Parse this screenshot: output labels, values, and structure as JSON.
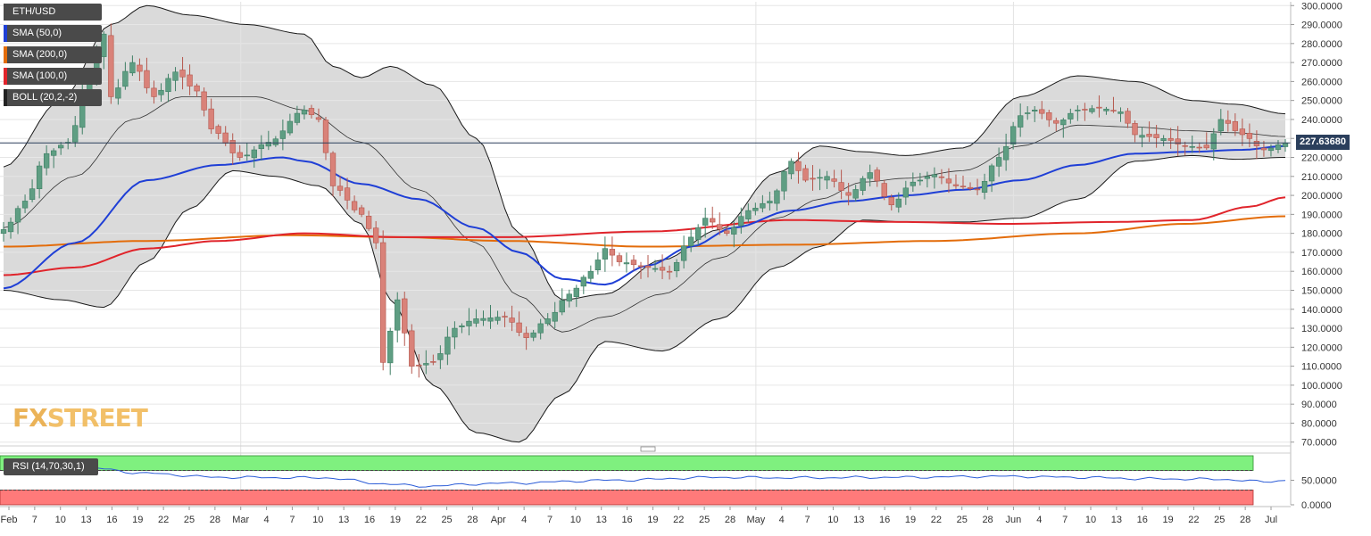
{
  "legend": [
    {
      "label": "ETH/USD",
      "color": "#4a4a4a"
    },
    {
      "label": "SMA (50,0)",
      "color": "#1f3fd6"
    },
    {
      "label": "SMA (200,0)",
      "color": "#e36c0a"
    },
    {
      "label": "SMA (100,0)",
      "color": "#e0242b"
    },
    {
      "label": "BOLL (20,2,-2)",
      "color": "#222222"
    }
  ],
  "rsi": {
    "label": "RSI (14,70,30,1)",
    "overbought_color": "#7ff07f",
    "oversold_color": "#ff7a7a"
  },
  "logo": {
    "fx": "FX",
    "street": "STREET"
  },
  "current_price": "227.63680",
  "chart_data": [
    {
      "type": "candlestick",
      "title": "ETH/USD",
      "ylim": [
        68,
        302
      ],
      "y_ticks": [
        "300.0000",
        "290.0000",
        "280.0000",
        "270.0000",
        "260.0000",
        "250.0000",
        "240.0000",
        "230.0000",
        "220.0000",
        "210.0000",
        "200.0000",
        "190.0000",
        "180.0000",
        "170.0000",
        "160.0000",
        "150.0000",
        "140.0000",
        "130.0000",
        "120.0000",
        "110.0000",
        "100.0000",
        "90.0000",
        "80.0000",
        "70.0000"
      ],
      "x_ticks": [
        "Feb",
        "7",
        "10",
        "13",
        "16",
        "19",
        "22",
        "25",
        "28",
        "Mar",
        "4",
        "7",
        "10",
        "13",
        "16",
        "19",
        "22",
        "25",
        "28",
        "Apr",
        "4",
        "7",
        "10",
        "13",
        "16",
        "19",
        "22",
        "25",
        "28",
        "May",
        "4",
        "7",
        "10",
        "13",
        "16",
        "19",
        "22",
        "25",
        "28",
        "Jun",
        "4",
        "7",
        "10",
        "13",
        "16",
        "19",
        "22",
        "25",
        "28",
        "Jul"
      ],
      "close_anchors": [
        [
          0,
          182
        ],
        [
          3,
          197
        ],
        [
          6,
          222
        ],
        [
          9,
          228
        ],
        [
          12,
          262
        ],
        [
          14,
          285
        ],
        [
          15,
          252
        ],
        [
          18,
          270
        ],
        [
          21,
          252
        ],
        [
          24,
          265
        ],
        [
          27,
          255
        ],
        [
          29,
          235
        ],
        [
          33,
          220
        ],
        [
          37,
          228
        ],
        [
          42,
          245
        ],
        [
          44,
          240
        ],
        [
          46,
          205
        ],
        [
          50,
          190
        ],
        [
          52,
          175
        ],
        [
          53,
          112
        ],
        [
          55,
          145
        ],
        [
          57,
          110
        ],
        [
          60,
          112
        ],
        [
          63,
          130
        ],
        [
          66,
          135
        ],
        [
          70,
          136
        ],
        [
          73,
          125
        ],
        [
          76,
          135
        ],
        [
          79,
          148
        ],
        [
          82,
          160
        ],
        [
          84,
          172
        ],
        [
          86,
          165
        ],
        [
          90,
          162
        ],
        [
          93,
          160
        ],
        [
          96,
          178
        ],
        [
          98,
          188
        ],
        [
          101,
          180
        ],
        [
          104,
          192
        ],
        [
          107,
          197
        ],
        [
          110,
          218
        ],
        [
          112,
          208
        ],
        [
          115,
          210
        ],
        [
          118,
          200
        ],
        [
          121,
          212
        ],
        [
          124,
          195
        ],
        [
          127,
          207
        ],
        [
          130,
          211
        ],
        [
          133,
          205
        ],
        [
          136,
          203
        ],
        [
          139,
          220
        ],
        [
          142,
          242
        ],
        [
          144,
          245
        ],
        [
          147,
          238
        ],
        [
          150,
          245
        ],
        [
          153,
          246
        ],
        [
          156,
          244
        ],
        [
          158,
          232
        ],
        [
          162,
          230
        ],
        [
          165,
          226
        ],
        [
          168,
          225
        ],
        [
          170,
          240
        ],
        [
          173,
          232
        ],
        [
          176,
          224
        ],
        [
          179,
          227.64
        ]
      ],
      "sma50_anchors": [
        [
          0,
          151
        ],
        [
          10,
          175
        ],
        [
          20,
          208
        ],
        [
          30,
          216
        ],
        [
          39,
          220
        ],
        [
          42,
          218
        ],
        [
          50,
          206
        ],
        [
          58,
          198
        ],
        [
          66,
          183
        ],
        [
          72,
          170
        ],
        [
          78,
          156
        ],
        [
          84,
          153
        ],
        [
          90,
          163
        ],
        [
          96,
          173
        ],
        [
          102,
          183
        ],
        [
          110,
          192
        ],
        [
          118,
          197
        ],
        [
          126,
          200
        ],
        [
          134,
          203
        ],
        [
          142,
          208
        ],
        [
          150,
          216
        ],
        [
          158,
          222
        ],
        [
          166,
          223
        ],
        [
          173,
          224
        ],
        [
          179,
          226
        ]
      ],
      "sma100_anchors": [
        [
          0,
          158
        ],
        [
          10,
          162
        ],
        [
          20,
          172
        ],
        [
          30,
          176
        ],
        [
          42,
          180
        ],
        [
          55,
          178
        ],
        [
          70,
          178
        ],
        [
          90,
          181
        ],
        [
          110,
          187
        ],
        [
          125,
          186
        ],
        [
          140,
          185
        ],
        [
          155,
          186
        ],
        [
          166,
          187
        ],
        [
          174,
          194
        ],
        [
          179,
          199
        ]
      ],
      "sma200_anchors": [
        [
          0,
          173
        ],
        [
          20,
          176
        ],
        [
          40,
          179
        ],
        [
          55,
          178
        ],
        [
          70,
          176
        ],
        [
          90,
          173
        ],
        [
          110,
          174
        ],
        [
          130,
          176
        ],
        [
          150,
          180
        ],
        [
          165,
          185
        ],
        [
          179,
          189
        ]
      ],
      "boll_upper_anchors": [
        [
          0,
          215
        ],
        [
          8,
          250
        ],
        [
          15,
          290
        ],
        [
          20,
          300
        ],
        [
          26,
          295
        ],
        [
          34,
          290
        ],
        [
          42,
          285
        ],
        [
          46,
          268
        ],
        [
          50,
          262
        ],
        [
          54,
          268
        ],
        [
          60,
          258
        ],
        [
          66,
          230
        ],
        [
          72,
          180
        ],
        [
          78,
          145
        ],
        [
          84,
          148
        ],
        [
          92,
          166
        ],
        [
          100,
          182
        ],
        [
          108,
          212
        ],
        [
          114,
          226
        ],
        [
          120,
          223
        ],
        [
          126,
          221
        ],
        [
          134,
          225
        ],
        [
          142,
          252
        ],
        [
          150,
          263
        ],
        [
          158,
          260
        ],
        [
          166,
          250
        ],
        [
          172,
          248
        ],
        [
          179,
          243
        ]
      ],
      "boll_mid_anchors": [
        [
          0,
          183
        ],
        [
          10,
          210
        ],
        [
          18,
          240
        ],
        [
          25,
          252
        ],
        [
          35,
          252
        ],
        [
          42,
          245
        ],
        [
          50,
          228
        ],
        [
          58,
          203
        ],
        [
          66,
          175
        ],
        [
          72,
          147
        ],
        [
          78,
          128
        ],
        [
          84,
          136
        ],
        [
          92,
          148
        ],
        [
          100,
          167
        ],
        [
          108,
          188
        ],
        [
          114,
          198
        ],
        [
          120,
          207
        ],
        [
          126,
          209
        ],
        [
          134,
          213
        ],
        [
          142,
          226
        ],
        [
          150,
          237
        ],
        [
          158,
          236
        ],
        [
          166,
          234
        ],
        [
          172,
          233
        ],
        [
          179,
          231
        ]
      ],
      "boll_lower_anchors": [
        [
          0,
          150
        ],
        [
          8,
          145
        ],
        [
          14,
          141
        ],
        [
          20,
          165
        ],
        [
          26,
          193
        ],
        [
          32,
          213
        ],
        [
          38,
          210
        ],
        [
          44,
          205
        ],
        [
          50,
          185
        ],
        [
          54,
          145
        ],
        [
          60,
          100
        ],
        [
          66,
          75
        ],
        [
          72,
          70
        ],
        [
          78,
          95
        ],
        [
          84,
          123
        ],
        [
          92,
          118
        ],
        [
          100,
          135
        ],
        [
          108,
          162
        ],
        [
          114,
          173
        ],
        [
          120,
          187
        ],
        [
          126,
          186
        ],
        [
          134,
          186
        ],
        [
          142,
          188
        ],
        [
          150,
          198
        ],
        [
          158,
          218
        ],
        [
          166,
          221
        ],
        [
          172,
          219
        ],
        [
          179,
          220
        ]
      ]
    },
    {
      "type": "line",
      "title": "RSI (14,70,30,1)",
      "ylim": [
        0,
        100
      ],
      "y_ticks": [
        "50.0000",
        "0.0000"
      ],
      "levels": [
        70,
        30
      ],
      "rsi_anchors": [
        [
          0,
          68
        ],
        [
          12,
          75
        ],
        [
          20,
          64
        ],
        [
          30,
          56
        ],
        [
          45,
          55
        ],
        [
          53,
          43
        ],
        [
          58,
          38
        ],
        [
          70,
          44
        ],
        [
          85,
          50
        ],
        [
          100,
          56
        ],
        [
          110,
          55
        ],
        [
          125,
          56
        ],
        [
          140,
          58
        ],
        [
          150,
          56
        ],
        [
          160,
          53
        ],
        [
          170,
          52
        ],
        [
          176,
          47
        ],
        [
          179,
          50
        ]
      ]
    }
  ]
}
